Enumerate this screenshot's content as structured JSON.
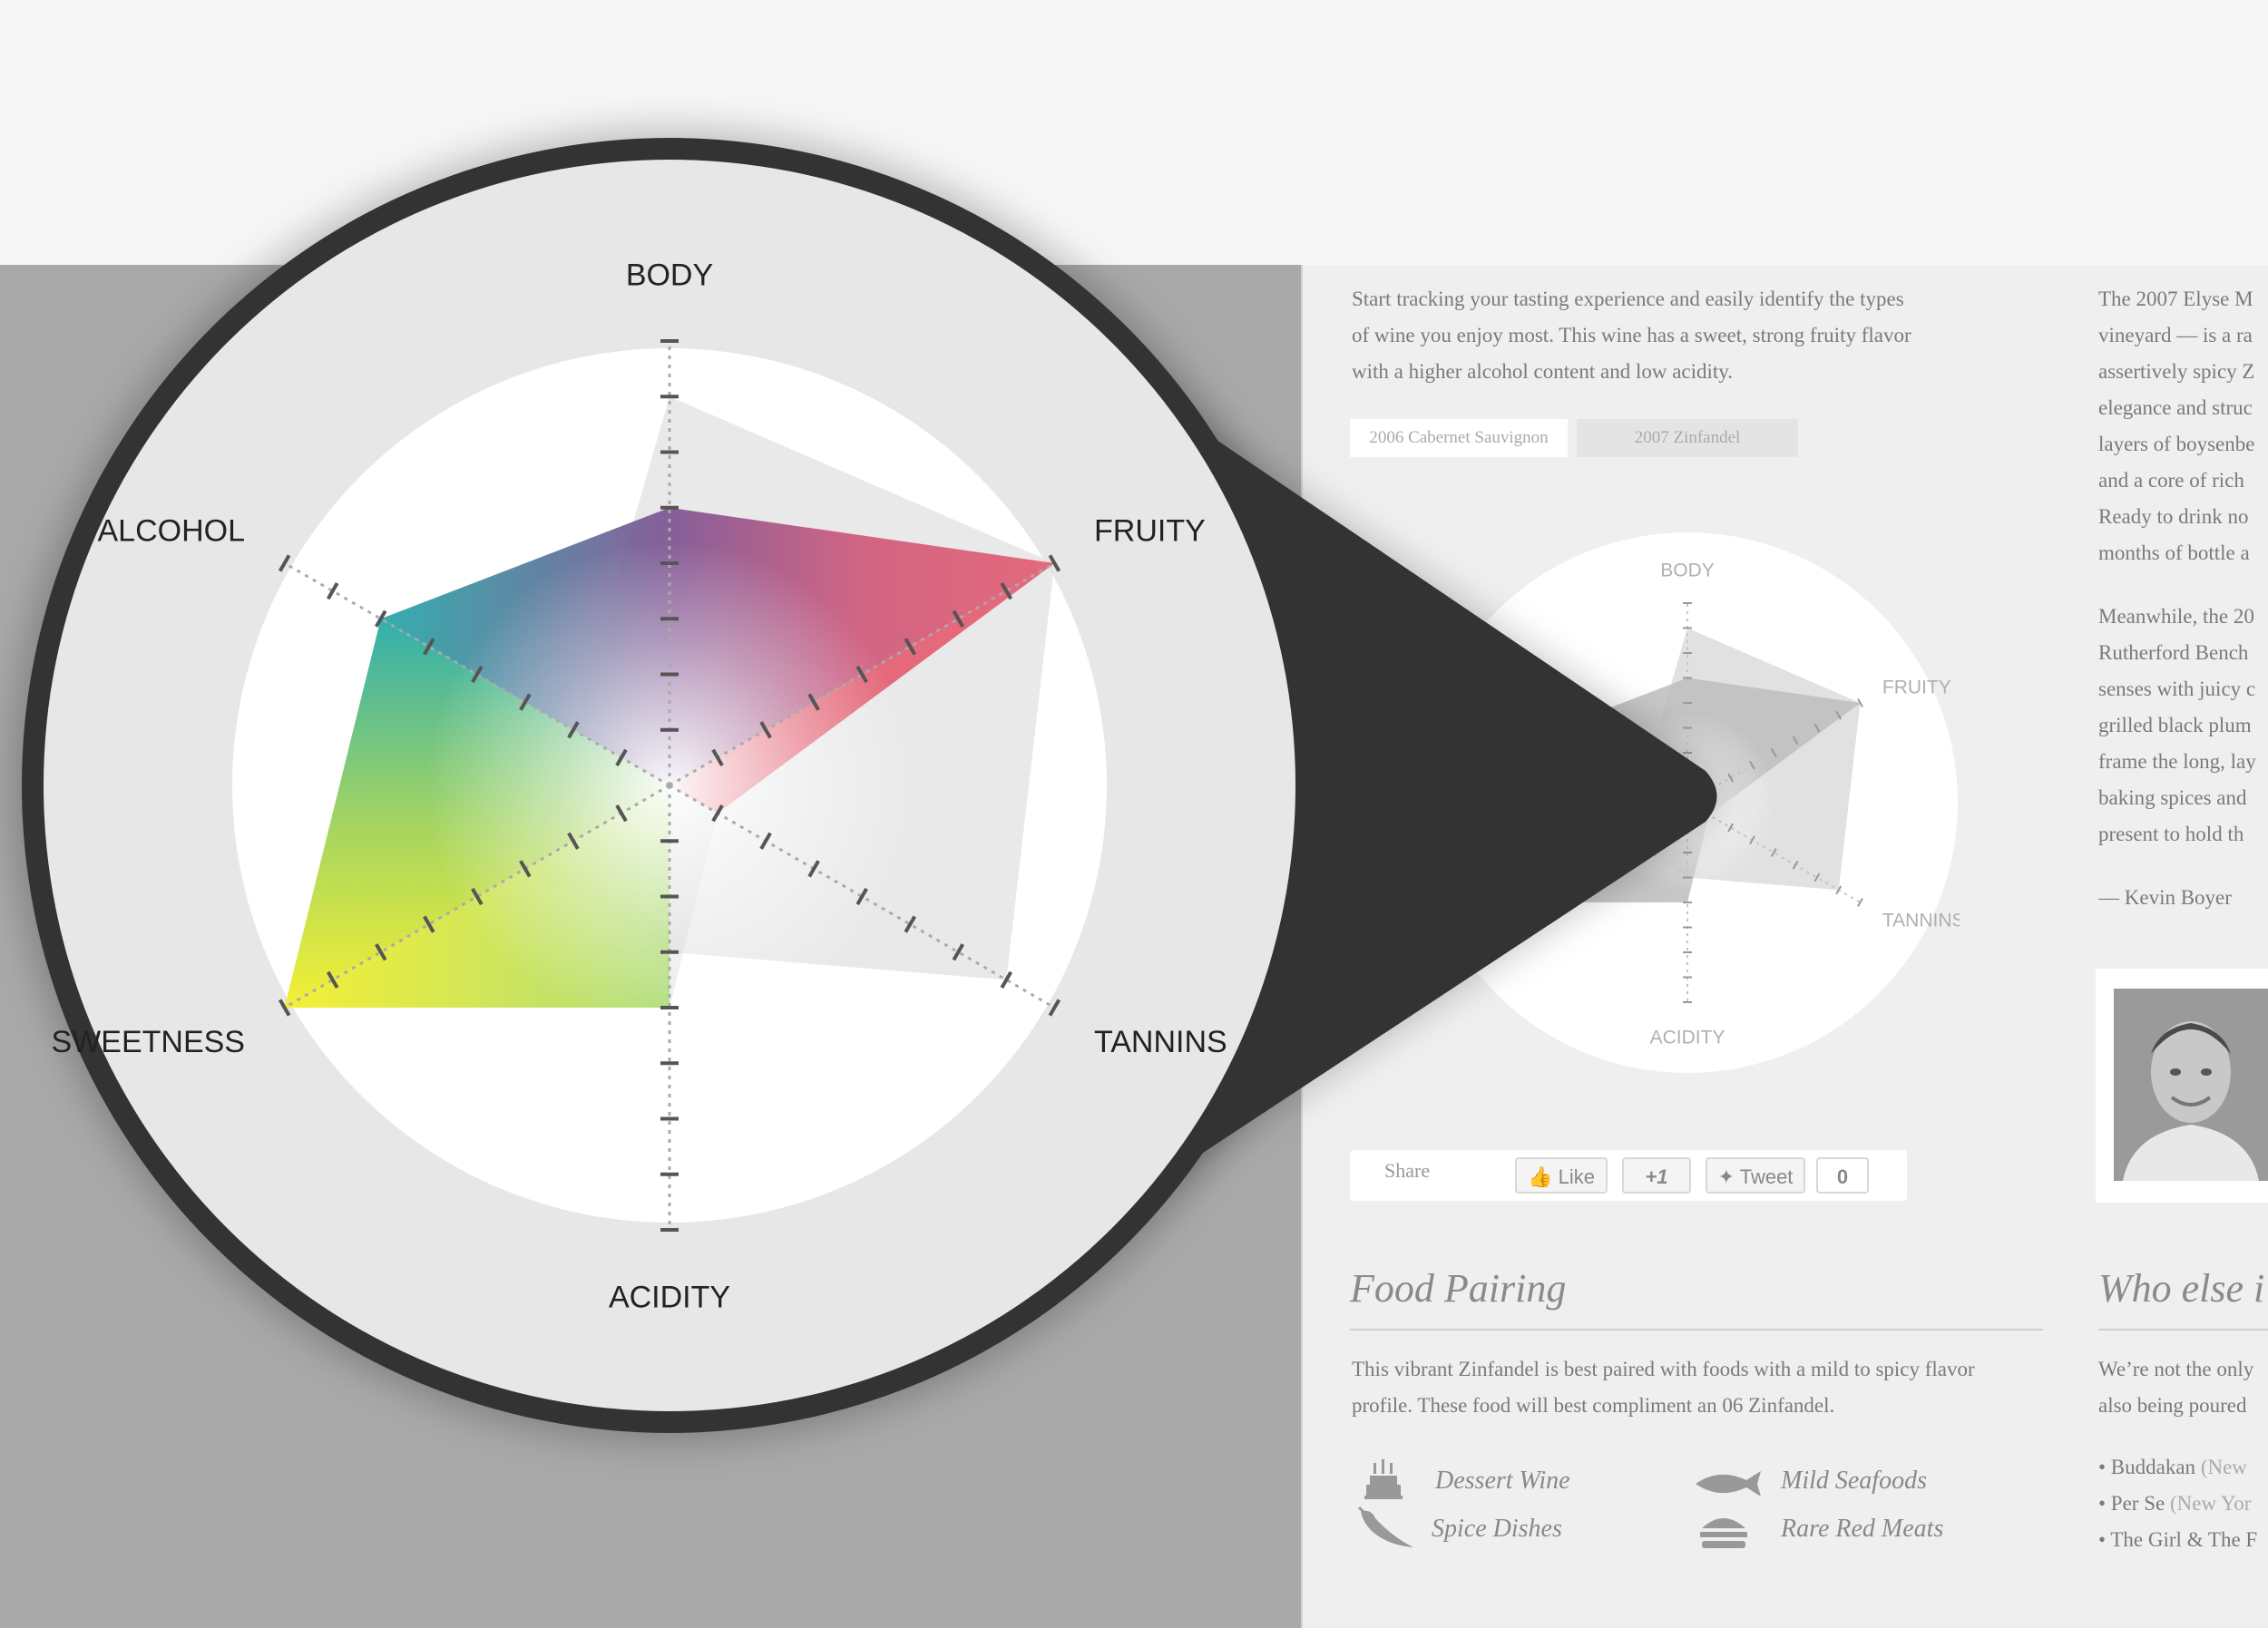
{
  "intro_lines": [
    "Start tracking your tasting experience and easily identify the types",
    "of wine you enjoy most. This wine has a sweet, strong fruity flavor",
    "with a higher alcohol content and low acidity."
  ],
  "tabs": [
    "2006 Cabernet Sauvignon",
    "2007 Zinfandel"
  ],
  "review": {
    "para1": [
      "The 2007 Elyse M",
      "vineyard — is a ra",
      "assertively spicy Z",
      "elegance and struc",
      "layers of boysenbe",
      "and a core of rich",
      "Ready to drink no",
      "months of bottle a"
    ],
    "para2": [
      "Meanwhile, the 20",
      "Rutherford Bench",
      "senses with juicy c",
      "grilled black plum",
      "frame the long, lay",
      "baking spices and",
      "present to hold th"
    ],
    "author": "— Kevin Boyer"
  },
  "chart_data": {
    "type": "radar",
    "axes": [
      "BODY",
      "FRUITY",
      "TANNINS",
      "ACIDITY",
      "SWEETNESS",
      "ALCOHOL"
    ],
    "scale_max": 8,
    "series": [
      {
        "values": [
          5,
          8,
          1,
          4,
          8,
          6
        ],
        "color": "#d9576f"
      },
      {
        "values": [
          7,
          8,
          7,
          3,
          3,
          2
        ],
        "color": "#dcdcdc"
      }
    ],
    "colors": {
      "body": "#7d4e8e",
      "fruity": "#e45b72",
      "alcohol": "#1fa6a3",
      "sweetness": "#f0ec1d",
      "acidity": "#9fd45a"
    }
  },
  "share": {
    "label": "Share",
    "like": "Like",
    "plus": "+1",
    "tweet": "Tweet",
    "count": "0"
  },
  "food_pairing": {
    "title": "Food Pairing",
    "desc": [
      "This vibrant Zinfandel is best paired with foods with a mild to spicy flavor",
      "profile.  These food will best compliment an 06 Zinfandel."
    ],
    "items": [
      "Dessert Wine",
      "Mild Seafoods",
      "Spice Dishes",
      "Rare Red Meats"
    ]
  },
  "who_else": {
    "title": "Who else i",
    "desc": [
      "We’re not the only",
      "also being poured"
    ],
    "list": [
      {
        "name": "• Buddakan",
        "city": " (New"
      },
      {
        "name": "• Per Se",
        "city": " (New Yor"
      },
      {
        "name": "• The Girl & The F",
        "city": ""
      }
    ]
  },
  "icons": [
    "cake-icon",
    "fish-icon",
    "pepper-icon",
    "burger-icon",
    "thumbs-up-icon",
    "bird-icon"
  ]
}
